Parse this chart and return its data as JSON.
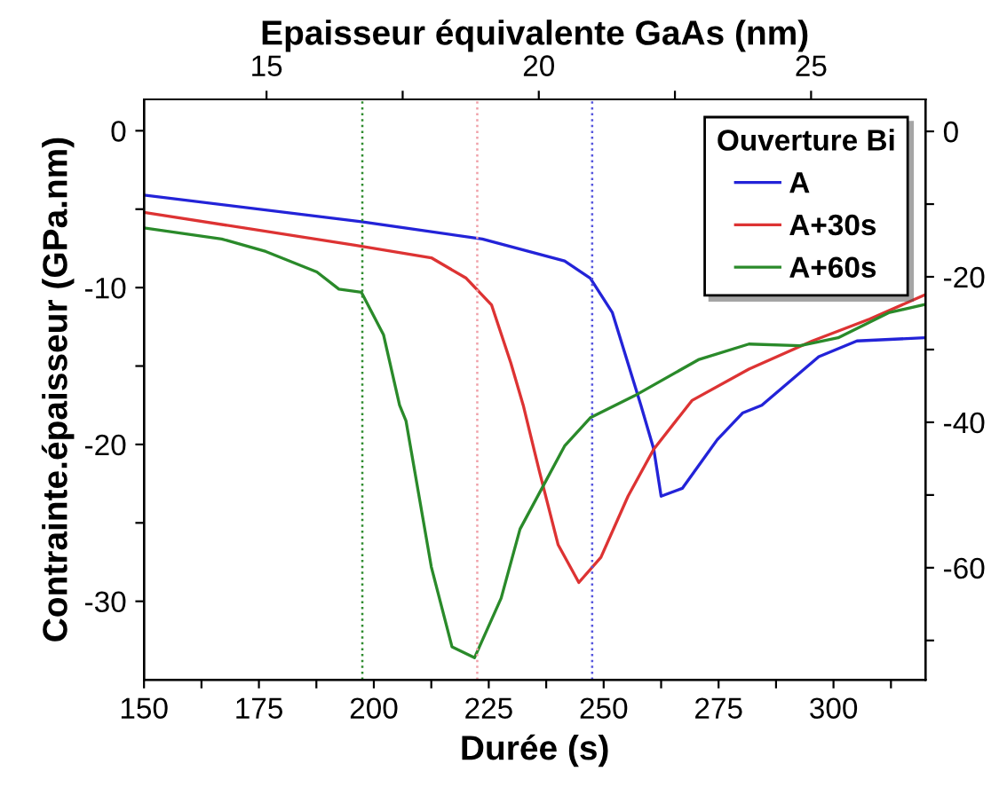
{
  "chart_data": {
    "type": "line",
    "xlabel": "Durée (s)",
    "ylabel": "Contrainte.épaisseur (GPa.nm)",
    "x2label": "Epaisseur équivalente GaAs (nm)",
    "legend_title": "Ouverture Bi",
    "legend": "top right",
    "grid": false,
    "marker": "none",
    "line_style": "solid",
    "xlim": [
      150,
      320
    ],
    "xticks": [
      150,
      {
        "value": 162.5,
        "label": null
      },
      175,
      {
        "value": 187.5,
        "label": null
      },
      200,
      {
        "value": 212.5,
        "label": null
      },
      225,
      {
        "value": 237.5,
        "label": null
      },
      250,
      {
        "value": 262.5,
        "label": null
      },
      275,
      {
        "value": 287.5,
        "label": null
      },
      300,
      {
        "value": 312.5,
        "label": null
      }
    ],
    "ylim": [
      -35,
      2
    ],
    "yticks": [
      0,
      {
        "value": -5,
        "label": null
      },
      -10,
      {
        "value": -15,
        "label": null
      },
      -20,
      {
        "value": -25,
        "label": null
      },
      -30
    ],
    "x2lim": [
      12.75,
      27.1
    ],
    "x2ticks": [
      15,
      {
        "value": 17.5,
        "label": null
      },
      20,
      {
        "value": 22.5,
        "label": null
      },
      25
    ],
    "y2lim": [
      -75.4,
      4.4
    ],
    "y2ticks": [
      0,
      {
        "value": -10,
        "label": null
      },
      -20,
      {
        "value": -30,
        "label": null
      },
      -40,
      {
        "value": -50,
        "label": null
      },
      -60,
      {
        "value": -70,
        "label": null
      }
    ],
    "ref_lines": [
      {
        "axis": "x",
        "value": 197.5,
        "label": null,
        "color": "#2e8b2e",
        "line_style": "dotted"
      },
      {
        "axis": "x",
        "value": 222.5,
        "label": null,
        "color": "#f0a0a8",
        "line_style": "dotted"
      },
      {
        "axis": "x",
        "value": 247.5,
        "label": null,
        "color": "#5555dd",
        "line_style": "dotted"
      }
    ],
    "series": [
      {
        "name": "A",
        "color": "#2323d8",
        "x": [
          150,
          197.3,
          223.6,
          241.5,
          247.1,
          251.9,
          258.1,
          260.9,
          262.5,
          267.1,
          274.7,
          280.2,
          284.4,
          296.8,
          305.1,
          319.6
        ],
        "values": [
          -4.1,
          -5.8,
          -6.9,
          -8.3,
          -9.4,
          -11.6,
          -17.5,
          -20.3,
          -23.3,
          -22.8,
          -19.7,
          -18.0,
          -17.5,
          -14.4,
          -13.4,
          -13.2
        ]
      },
      {
        "name": "A+30s",
        "color": "#dd3333",
        "x": [
          150,
          195.9,
          212.5,
          220.1,
          225.6,
          229.8,
          232.5,
          236,
          240.1,
          244.6,
          249.4,
          255.3,
          260.9,
          269.2,
          281.6,
          295.4,
          307.9,
          319.6
        ],
        "values": [
          -5.2,
          -7.3,
          -8.1,
          -9.4,
          -11.1,
          -14.8,
          -17.5,
          -21.7,
          -26.4,
          -28.8,
          -27.2,
          -23.3,
          -20.3,
          -17.2,
          -15.2,
          -13.4,
          -12.0,
          -10.5
        ]
      },
      {
        "name": "A+60s",
        "color": "#2a8a2a",
        "x": [
          150,
          166.9,
          176.5,
          187.6,
          192.4,
          197.3,
          202.1,
          205.6,
          207,
          212.5,
          217,
          221.9,
          227.7,
          231.8,
          241.5,
          247.1,
          256.7,
          270.6,
          281.6,
          292.7,
          301,
          312,
          319.6
        ],
        "values": [
          -6.2,
          -6.9,
          -7.7,
          -9.0,
          -10.1,
          -10.3,
          -13.0,
          -17.5,
          -18.5,
          -27.8,
          -32.9,
          -33.6,
          -29.8,
          -25.4,
          -20.1,
          -18.3,
          -16.9,
          -14.6,
          -13.6,
          -13.7,
          -13.2,
          -11.6,
          -11.1
        ]
      }
    ]
  }
}
